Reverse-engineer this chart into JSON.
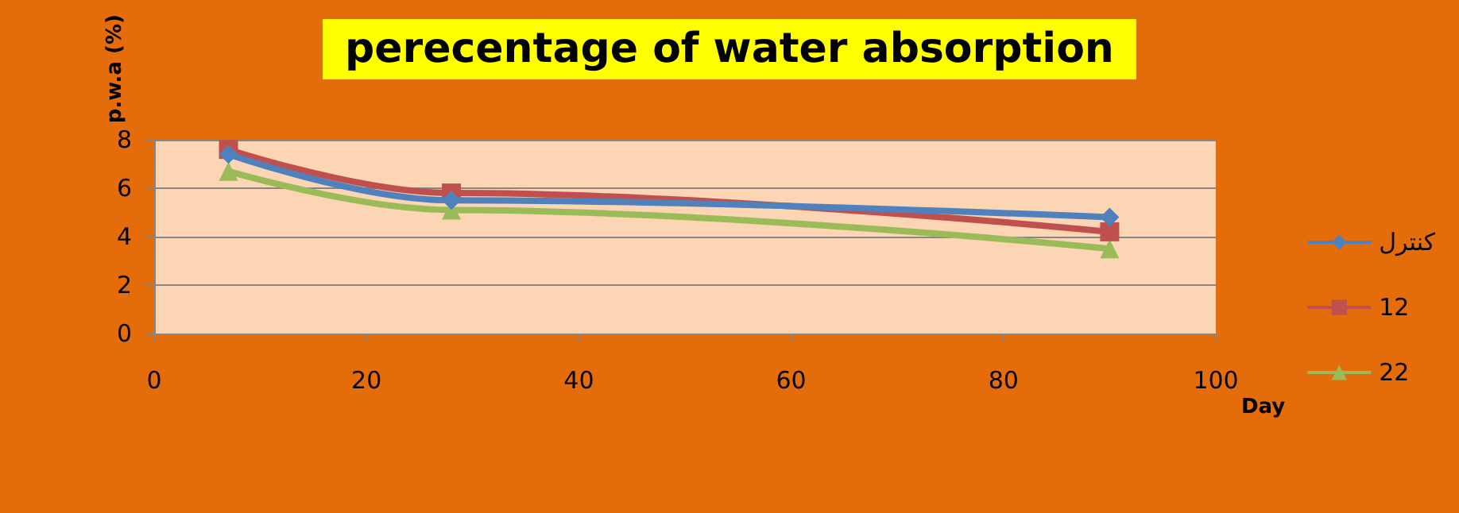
{
  "chart_data": {
    "type": "line",
    "title": "perecentage of water absorption",
    "xlabel": "Day",
    "ylabel": "p.w.a (%)",
    "x": [
      7,
      28,
      90
    ],
    "series": [
      {
        "name": "كنترل",
        "color": "#4f81bd",
        "marker": "diamond",
        "values": [
          7.4,
          5.5,
          4.8
        ]
      },
      {
        "name": "12",
        "color": "#c0504d",
        "marker": "square",
        "values": [
          7.6,
          5.8,
          4.2
        ]
      },
      {
        "name": "22",
        "color": "#9bbb59",
        "marker": "triangle",
        "values": [
          6.7,
          5.1,
          3.5
        ]
      }
    ],
    "xlim": [
      0,
      100
    ],
    "xticks": [
      0,
      20,
      40,
      60,
      80,
      100
    ],
    "ylim": [
      0,
      8
    ],
    "yticks": [
      0,
      2,
      4,
      6,
      8
    ],
    "grid": "y",
    "legend": "right",
    "line_style": "solid"
  }
}
